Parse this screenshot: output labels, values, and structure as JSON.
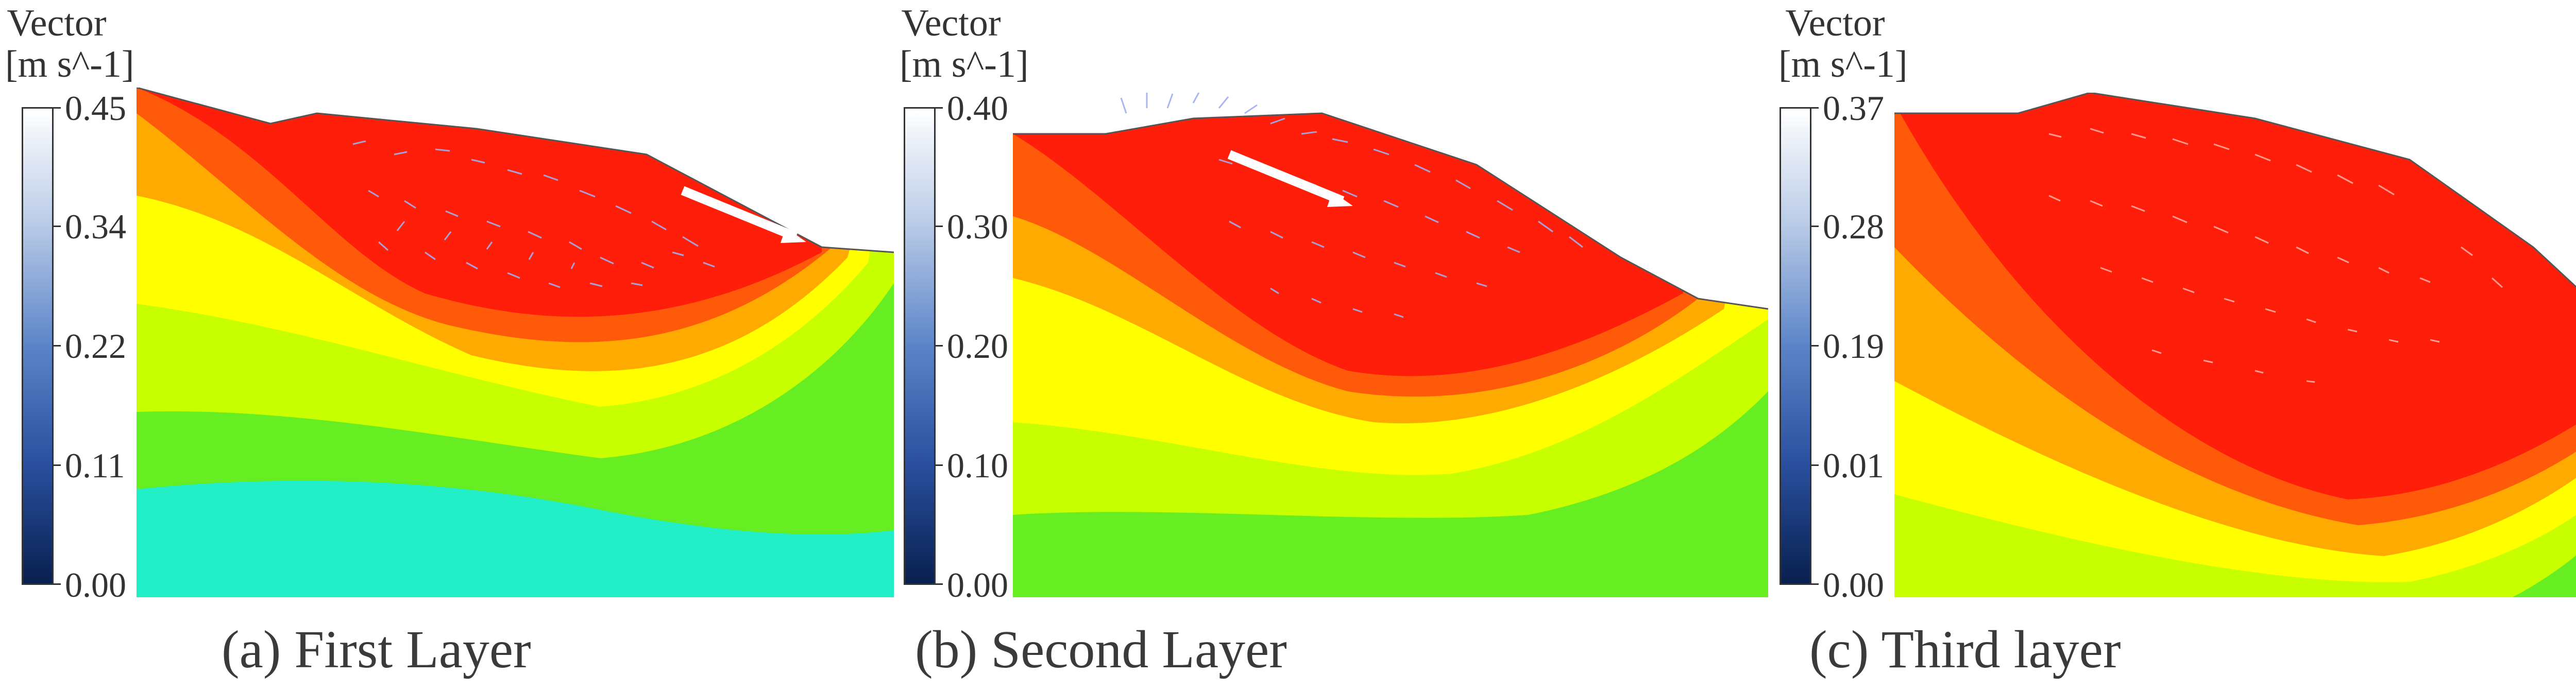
{
  "panels": [
    {
      "legend": {
        "title_line1": "Vector",
        "title_line2": "[m s^-1]",
        "ticks": [
          "0.45",
          "0.34",
          "0.22",
          "0.11",
          "0.00"
        ]
      },
      "caption": "(a) First Layer"
    },
    {
      "legend": {
        "title_line1": "Vector",
        "title_line2": "[m s^-1]",
        "ticks": [
          "0.40",
          "0.30",
          "0.20",
          "0.10",
          "0.00"
        ]
      },
      "caption": "(b) Second Layer"
    },
    {
      "legend": {
        "title_line1": "Vector",
        "title_line2": "[m s^-1]",
        "ticks": [
          "0.37",
          "0.28",
          "0.19",
          "0.01",
          "0.00"
        ]
      },
      "caption": "(c) Third layer"
    }
  ],
  "colors": {
    "band_red": "#ff1e0a",
    "band_orange_red": "#ff5a0a",
    "band_orange": "#ffaa00",
    "band_yellow": "#ffff00",
    "band_yellow_green": "#c8ff00",
    "band_green": "#66ee22",
    "band_cyan": "#22eec8",
    "vector_color": "#9fb0ee"
  }
}
